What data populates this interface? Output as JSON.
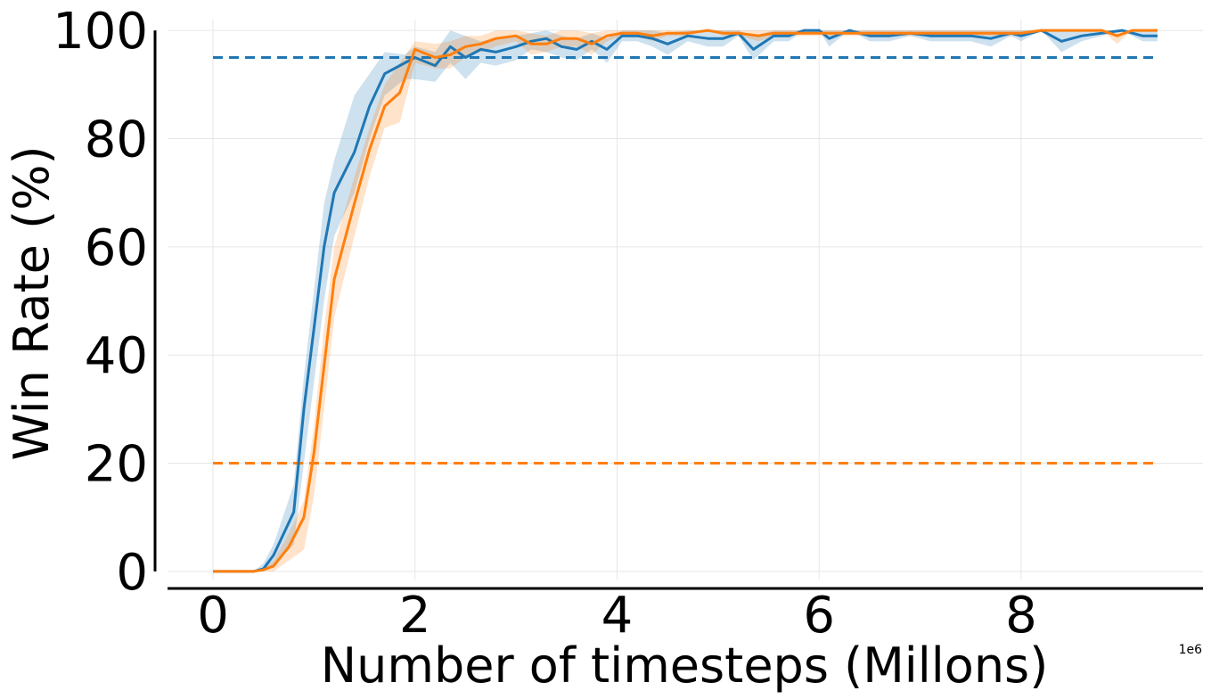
{
  "chart_data": {
    "type": "line",
    "title": "",
    "xlabel": "Number of timesteps (Millons)",
    "ylabel": "Win Rate (%)",
    "x_offset_label": "1e6",
    "xlim": [
      -0.45,
      9.8
    ],
    "ylim": [
      -1.5,
      102
    ],
    "xticks": [
      0,
      2,
      4,
      6,
      8
    ],
    "xtick_labels": [
      "0",
      "2",
      "4",
      "6",
      "8"
    ],
    "yticks": [
      0,
      20,
      40,
      60,
      80,
      100
    ],
    "ytick_labels": [
      "0",
      "20",
      "40",
      "60",
      "80",
      "100"
    ],
    "grid": true,
    "legend": "none",
    "series": [
      {
        "color": "#1f77b4",
        "x": [
          0,
          0.2,
          0.4,
          0.5,
          0.6,
          0.8,
          0.9,
          1.0,
          1.1,
          1.2,
          1.4,
          1.55,
          1.7,
          1.9,
          2.0,
          2.2,
          2.35,
          2.5,
          2.65,
          2.8,
          3.0,
          3.15,
          3.3,
          3.45,
          3.6,
          3.75,
          3.9,
          4.05,
          4.2,
          4.35,
          4.5,
          4.7,
          4.9,
          5.05,
          5.2,
          5.35,
          5.55,
          5.7,
          5.85,
          6.0,
          6.1,
          6.3,
          6.5,
          6.7,
          6.9,
          7.1,
          7.3,
          7.5,
          7.7,
          7.9,
          8.0,
          8.2,
          8.4,
          8.6,
          8.8,
          9.0,
          9.2,
          9.35
        ],
        "values": [
          0,
          0,
          0,
          0.5,
          3,
          11,
          30,
          45,
          60,
          70,
          77.5,
          86,
          92,
          94,
          95,
          93.5,
          97,
          95,
          96.5,
          96,
          97,
          98,
          98.5,
          97,
          96.5,
          98,
          96.5,
          99,
          99,
          98.5,
          97.5,
          99,
          98.5,
          98.5,
          99.5,
          96.5,
          99,
          99,
          100,
          100,
          98.5,
          100,
          99,
          99,
          99.5,
          99,
          99,
          99,
          98.5,
          99.5,
          99,
          100,
          98,
          99,
          99.5,
          100,
          99,
          99
        ],
        "band_upper": [
          0,
          0,
          0,
          1.5,
          5,
          16,
          36,
          52,
          68,
          76,
          88,
          92,
          96,
          95.5,
          97,
          96,
          100,
          99,
          98,
          98.5,
          99,
          99.5,
          100,
          99,
          98.5,
          99.5,
          98.5,
          100,
          100,
          100,
          99.5,
          100,
          100,
          100,
          100,
          99,
          100,
          100,
          100,
          100,
          100,
          100,
          100,
          100,
          100,
          100,
          100,
          100,
          100,
          100,
          100,
          100,
          100,
          100,
          100,
          100,
          100,
          100
        ],
        "band_lower": [
          0,
          0,
          0,
          0,
          1,
          5,
          20,
          35,
          50,
          62,
          70,
          80,
          88,
          91,
          91,
          90.5,
          94,
          91,
          94,
          93.5,
          94.5,
          96.5,
          96,
          95,
          94.5,
          96.5,
          94,
          98,
          98,
          97,
          95.5,
          98,
          97,
          97,
          99,
          94.5,
          98,
          98,
          100,
          100,
          97,
          100,
          98,
          98,
          99,
          98,
          98,
          98,
          97,
          99,
          98,
          100,
          96,
          98,
          99,
          100,
          98,
          98
        ]
      },
      {
        "color": "#ff7f0e",
        "x": [
          0,
          0.2,
          0.4,
          0.5,
          0.6,
          0.75,
          0.9,
          1.0,
          1.1,
          1.2,
          1.4,
          1.55,
          1.7,
          1.85,
          2.0,
          2.2,
          2.35,
          2.5,
          2.65,
          2.8,
          3.0,
          3.15,
          3.3,
          3.45,
          3.6,
          3.75,
          3.9,
          4.05,
          4.2,
          4.35,
          4.5,
          4.7,
          4.9,
          5.05,
          5.2,
          5.4,
          5.55,
          5.7,
          5.85,
          6.0,
          6.2,
          6.4,
          6.6,
          6.8,
          7.0,
          7.2,
          7.4,
          7.6,
          7.8,
          8.0,
          8.2,
          8.4,
          8.6,
          8.8,
          8.95,
          9.1,
          9.3,
          9.35
        ],
        "values": [
          0,
          0,
          0,
          0.3,
          1,
          4.5,
          10,
          22,
          38,
          54,
          68,
          78,
          86,
          88.5,
          96.5,
          95,
          95.5,
          97,
          97.5,
          98.5,
          99,
          97.5,
          97.5,
          98.5,
          98.5,
          97.5,
          99,
          99.5,
          99.5,
          99,
          99.5,
          99.5,
          100,
          99.5,
          99.5,
          99,
          99.5,
          99.5,
          99.5,
          99.5,
          99.5,
          99.5,
          99.5,
          99.5,
          99.5,
          99.5,
          99.5,
          99.5,
          99.5,
          99.5,
          100,
          100,
          100,
          100,
          99,
          100,
          100,
          100
        ],
        "band_upper": [
          0,
          0,
          0,
          0.5,
          2,
          7,
          13,
          27,
          45,
          60,
          73,
          82,
          90,
          94,
          98,
          97.5,
          98,
          99,
          99,
          100,
          100,
          99.5,
          99,
          100,
          100,
          99.5,
          100,
          100,
          100,
          100,
          100,
          100,
          100,
          100,
          100,
          100,
          100,
          100,
          100,
          100,
          100,
          100,
          100,
          100,
          100,
          100,
          100,
          100,
          100,
          100,
          100,
          100,
          100,
          100,
          100,
          100,
          100,
          100
        ],
        "band_lower": [
          0,
          0,
          0,
          0,
          0,
          2,
          4,
          14,
          30,
          47,
          62,
          73,
          82,
          83,
          94,
          93,
          93,
          95,
          96,
          97,
          98,
          95.5,
          96,
          97,
          97,
          95.5,
          98,
          99,
          99,
          98,
          99,
          99,
          100,
          99,
          99,
          98,
          99,
          99,
          99,
          99,
          99,
          99,
          99,
          99,
          99,
          99,
          99,
          99,
          99,
          99,
          100,
          100,
          100,
          100,
          97.5,
          100,
          100,
          100
        ]
      }
    ],
    "reference_lines": [
      {
        "color": "#1f77b4",
        "y": 95,
        "x_range": [
          0,
          9.35
        ],
        "style": "dashed"
      },
      {
        "color": "#ff7f0e",
        "y": 20,
        "x_range": [
          0,
          9.35
        ],
        "style": "dashed"
      }
    ]
  }
}
